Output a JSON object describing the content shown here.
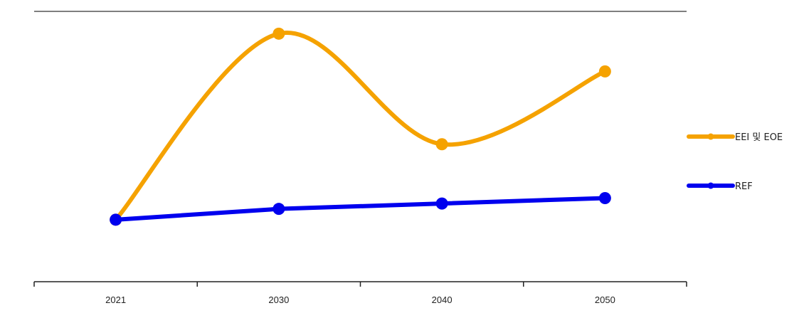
{
  "chart_data": {
    "type": "line",
    "categories": [
      "2021",
      "2030",
      "2040",
      "2050"
    ],
    "ylim": [
      0,
      100
    ],
    "grid": false,
    "legend_position": "right",
    "series": [
      {
        "name": "EEI  및 EOE",
        "values": [
          23,
          92,
          51,
          78
        ],
        "color": "#F5A200",
        "smooth": true
      },
      {
        "name": "REF",
        "values": [
          23,
          27,
          29,
          31
        ],
        "color": "#0000EE",
        "smooth": false
      }
    ],
    "colors": {
      "top_rule": "#7f7f7f",
      "axis": "#222222"
    }
  }
}
